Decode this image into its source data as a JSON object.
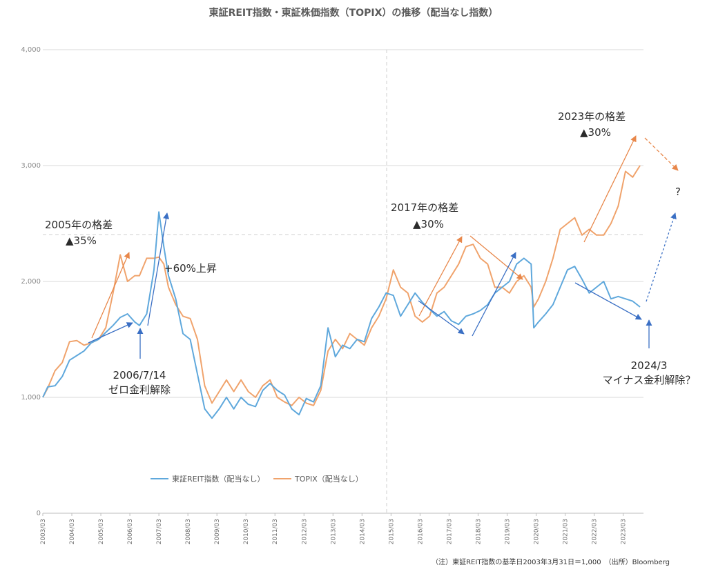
{
  "chart_data": {
    "type": "line",
    "title": "東証REIT指数・東証株価指数（TOPIX）の推移（配当なし指数）",
    "footnote": "（注）東証REIT指数の基準日2003年3月31日＝1,000　（出所）Bloomberg",
    "ylim": [
      0,
      4000
    ],
    "y_ticks": [
      "0",
      "1,000",
      "2,000",
      "3,000",
      "4,000"
    ],
    "x_ticks": [
      "2003/03",
      "2004/03",
      "2005/03",
      "2006/03",
      "2007/03",
      "2008/03",
      "2009/03",
      "2010/03",
      "2011/03",
      "2012/03",
      "2013/03",
      "2014/03",
      "2015/03",
      "2016/03",
      "2017/03",
      "2018/03",
      "2019/03",
      "2020/03",
      "2021/03",
      "2022/03",
      "2023/03"
    ],
    "grid": true,
    "legend": "bottom-left",
    "series": [
      {
        "name": "東証REIT指数（配当なし）",
        "color": "#5fa8dc",
        "points": [
          [
            2003.25,
            1000
          ],
          [
            2003.42,
            1090
          ],
          [
            2003.67,
            1100
          ],
          [
            2003.92,
            1180
          ],
          [
            2004.17,
            1320
          ],
          [
            2004.42,
            1360
          ],
          [
            2004.67,
            1400
          ],
          [
            2004.92,
            1470
          ],
          [
            2005.17,
            1500
          ],
          [
            2005.42,
            1560
          ],
          [
            2005.67,
            1620
          ],
          [
            2005.92,
            1690
          ],
          [
            2006.17,
            1720
          ],
          [
            2006.42,
            1650
          ],
          [
            2006.58,
            1620
          ],
          [
            2006.83,
            1720
          ],
          [
            2007.08,
            2100
          ],
          [
            2007.25,
            2600
          ],
          [
            2007.42,
            2300
          ],
          [
            2007.58,
            2050
          ],
          [
            2007.83,
            1850
          ],
          [
            2008.08,
            1550
          ],
          [
            2008.33,
            1500
          ],
          [
            2008.58,
            1200
          ],
          [
            2008.83,
            900
          ],
          [
            2009.08,
            820
          ],
          [
            2009.33,
            900
          ],
          [
            2009.58,
            1000
          ],
          [
            2009.83,
            900
          ],
          [
            2010.08,
            1000
          ],
          [
            2010.33,
            940
          ],
          [
            2010.58,
            920
          ],
          [
            2010.83,
            1060
          ],
          [
            2011.08,
            1120
          ],
          [
            2011.33,
            1060
          ],
          [
            2011.58,
            1020
          ],
          [
            2011.83,
            900
          ],
          [
            2012.08,
            850
          ],
          [
            2012.33,
            990
          ],
          [
            2012.58,
            960
          ],
          [
            2012.83,
            1100
          ],
          [
            2013.08,
            1600
          ],
          [
            2013.33,
            1350
          ],
          [
            2013.58,
            1450
          ],
          [
            2013.83,
            1420
          ],
          [
            2014.08,
            1500
          ],
          [
            2014.33,
            1480
          ],
          [
            2014.58,
            1680
          ],
          [
            2014.83,
            1780
          ],
          [
            2015.08,
            1900
          ],
          [
            2015.33,
            1880
          ],
          [
            2015.58,
            1700
          ],
          [
            2015.83,
            1800
          ],
          [
            2016.08,
            1900
          ],
          [
            2016.33,
            1820
          ],
          [
            2016.58,
            1760
          ],
          [
            2016.83,
            1700
          ],
          [
            2017.08,
            1740
          ],
          [
            2017.33,
            1660
          ],
          [
            2017.58,
            1630
          ],
          [
            2017.83,
            1700
          ],
          [
            2018.08,
            1720
          ],
          [
            2018.33,
            1750
          ],
          [
            2018.58,
            1800
          ],
          [
            2018.83,
            1900
          ],
          [
            2019.08,
            1950
          ],
          [
            2019.33,
            2000
          ],
          [
            2019.58,
            2150
          ],
          [
            2019.83,
            2200
          ],
          [
            2020.08,
            2150
          ],
          [
            2020.17,
            1600
          ],
          [
            2020.33,
            1650
          ],
          [
            2020.58,
            1720
          ],
          [
            2020.83,
            1800
          ],
          [
            2021.08,
            1950
          ],
          [
            2021.33,
            2100
          ],
          [
            2021.58,
            2130
          ],
          [
            2021.83,
            2020
          ],
          [
            2022.08,
            1900
          ],
          [
            2022.33,
            1950
          ],
          [
            2022.58,
            2000
          ],
          [
            2022.83,
            1850
          ],
          [
            2023.08,
            1870
          ],
          [
            2023.33,
            1850
          ],
          [
            2023.58,
            1830
          ],
          [
            2023.83,
            1780
          ]
        ]
      },
      {
        "name": "TOPIX（配当なし）",
        "color": "#f0a36c",
        "points": [
          [
            2003.25,
            1000
          ],
          [
            2003.42,
            1080
          ],
          [
            2003.67,
            1230
          ],
          [
            2003.92,
            1300
          ],
          [
            2004.17,
            1480
          ],
          [
            2004.42,
            1490
          ],
          [
            2004.67,
            1450
          ],
          [
            2004.92,
            1470
          ],
          [
            2005.17,
            1500
          ],
          [
            2005.42,
            1600
          ],
          [
            2005.67,
            1900
          ],
          [
            2005.92,
            2230
          ],
          [
            2006.17,
            2000
          ],
          [
            2006.42,
            2050
          ],
          [
            2006.58,
            2050
          ],
          [
            2006.83,
            2200
          ],
          [
            2007.08,
            2200
          ],
          [
            2007.25,
            2210
          ],
          [
            2007.42,
            2150
          ],
          [
            2007.58,
            1950
          ],
          [
            2007.83,
            1800
          ],
          [
            2008.08,
            1700
          ],
          [
            2008.33,
            1680
          ],
          [
            2008.58,
            1500
          ],
          [
            2008.83,
            1100
          ],
          [
            2009.08,
            950
          ],
          [
            2009.33,
            1050
          ],
          [
            2009.58,
            1150
          ],
          [
            2009.83,
            1050
          ],
          [
            2010.08,
            1150
          ],
          [
            2010.33,
            1050
          ],
          [
            2010.58,
            1000
          ],
          [
            2010.83,
            1100
          ],
          [
            2011.08,
            1150
          ],
          [
            2011.33,
            1000
          ],
          [
            2011.58,
            960
          ],
          [
            2011.83,
            930
          ],
          [
            2012.08,
            1000
          ],
          [
            2012.33,
            950
          ],
          [
            2012.58,
            930
          ],
          [
            2012.83,
            1060
          ],
          [
            2013.08,
            1400
          ],
          [
            2013.33,
            1500
          ],
          [
            2013.58,
            1420
          ],
          [
            2013.83,
            1550
          ],
          [
            2014.08,
            1500
          ],
          [
            2014.33,
            1450
          ],
          [
            2014.58,
            1600
          ],
          [
            2014.83,
            1700
          ],
          [
            2015.08,
            1850
          ],
          [
            2015.33,
            2100
          ],
          [
            2015.58,
            1950
          ],
          [
            2015.83,
            1900
          ],
          [
            2016.08,
            1700
          ],
          [
            2016.33,
            1650
          ],
          [
            2016.58,
            1700
          ],
          [
            2016.83,
            1900
          ],
          [
            2017.08,
            1950
          ],
          [
            2017.33,
            2050
          ],
          [
            2017.58,
            2150
          ],
          [
            2017.83,
            2300
          ],
          [
            2018.08,
            2320
          ],
          [
            2018.33,
            2200
          ],
          [
            2018.58,
            2150
          ],
          [
            2018.83,
            1950
          ],
          [
            2019.08,
            1950
          ],
          [
            2019.33,
            1900
          ],
          [
            2019.58,
            2000
          ],
          [
            2019.83,
            2050
          ],
          [
            2020.08,
            1950
          ],
          [
            2020.17,
            1780
          ],
          [
            2020.33,
            1850
          ],
          [
            2020.58,
            2000
          ],
          [
            2020.83,
            2200
          ],
          [
            2021.08,
            2450
          ],
          [
            2021.33,
            2500
          ],
          [
            2021.58,
            2550
          ],
          [
            2021.83,
            2400
          ],
          [
            2022.08,
            2450
          ],
          [
            2022.33,
            2400
          ],
          [
            2022.58,
            2400
          ],
          [
            2022.83,
            2500
          ],
          [
            2023.08,
            2650
          ],
          [
            2023.33,
            2950
          ],
          [
            2023.58,
            2900
          ],
          [
            2023.83,
            3000
          ]
        ]
      }
    ],
    "annotations": {
      "gap_2005_title": "2005年の格差",
      "gap_2005_value": "▲35%",
      "zero_rate_date": "2006/7/14",
      "zero_rate_text": "ゼロ金利解除",
      "rise_60": "+60%上昇",
      "gap_2017_title": "2017年の格差",
      "gap_2017_value": "▲30%",
      "gap_2023_title": "2023年の格差",
      "gap_2023_value": "▲30%",
      "question": "?",
      "date_2024": "2024/3",
      "negative_rate_text": "マイナス金利解除？"
    }
  }
}
